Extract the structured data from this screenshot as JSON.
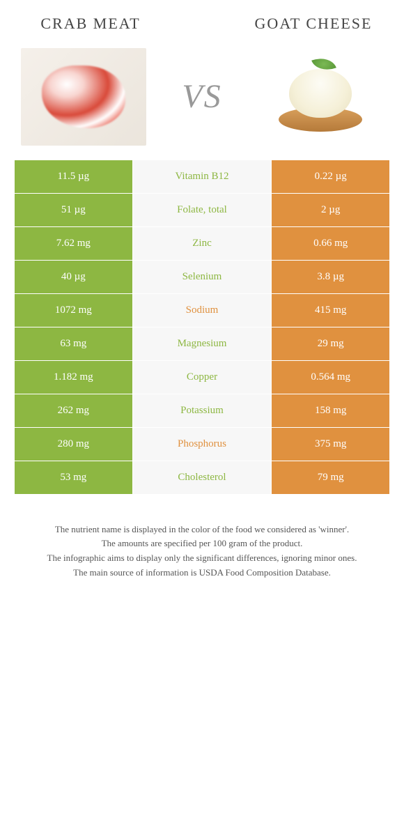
{
  "infographic": {
    "type": "comparison-table",
    "food_left": {
      "title": "CRAB MEAT",
      "color": "#8db742"
    },
    "food_right": {
      "title": "GOAT CHEESE",
      "color": "#e0913f"
    },
    "vs_label": "VS",
    "colors": {
      "green": "#8db742",
      "orange": "#e0913f",
      "mid_bg": "#f7f7f7"
    },
    "rows": [
      {
        "left": "11.5 µg",
        "name": "Vitamin B12",
        "right": "0.22 µg",
        "winner": "left"
      },
      {
        "left": "51 µg",
        "name": "Folate, total",
        "right": "2 µg",
        "winner": "left"
      },
      {
        "left": "7.62 mg",
        "name": "Zinc",
        "right": "0.66 mg",
        "winner": "left"
      },
      {
        "left": "40 µg",
        "name": "Selenium",
        "right": "3.8 µg",
        "winner": "left"
      },
      {
        "left": "1072 mg",
        "name": "Sodium",
        "right": "415 mg",
        "winner": "right"
      },
      {
        "left": "63 mg",
        "name": "Magnesium",
        "right": "29 mg",
        "winner": "left"
      },
      {
        "left": "1.182 mg",
        "name": "Copper",
        "right": "0.564 mg",
        "winner": "left"
      },
      {
        "left": "262 mg",
        "name": "Potassium",
        "right": "158 mg",
        "winner": "left"
      },
      {
        "left": "280 mg",
        "name": "Phosphorus",
        "right": "375 mg",
        "winner": "right"
      },
      {
        "left": "53 mg",
        "name": "Cholesterol",
        "right": "79 mg",
        "winner": "left"
      }
    ],
    "footer_lines": [
      "The nutrient name is displayed in the color of the food we considered as 'winner'.",
      "The amounts are specified per 100 gram of the product.",
      "The infographic aims to display only the significant differences, ignoring minor ones.",
      "The main source of information is USDA Food Composition Database."
    ]
  }
}
